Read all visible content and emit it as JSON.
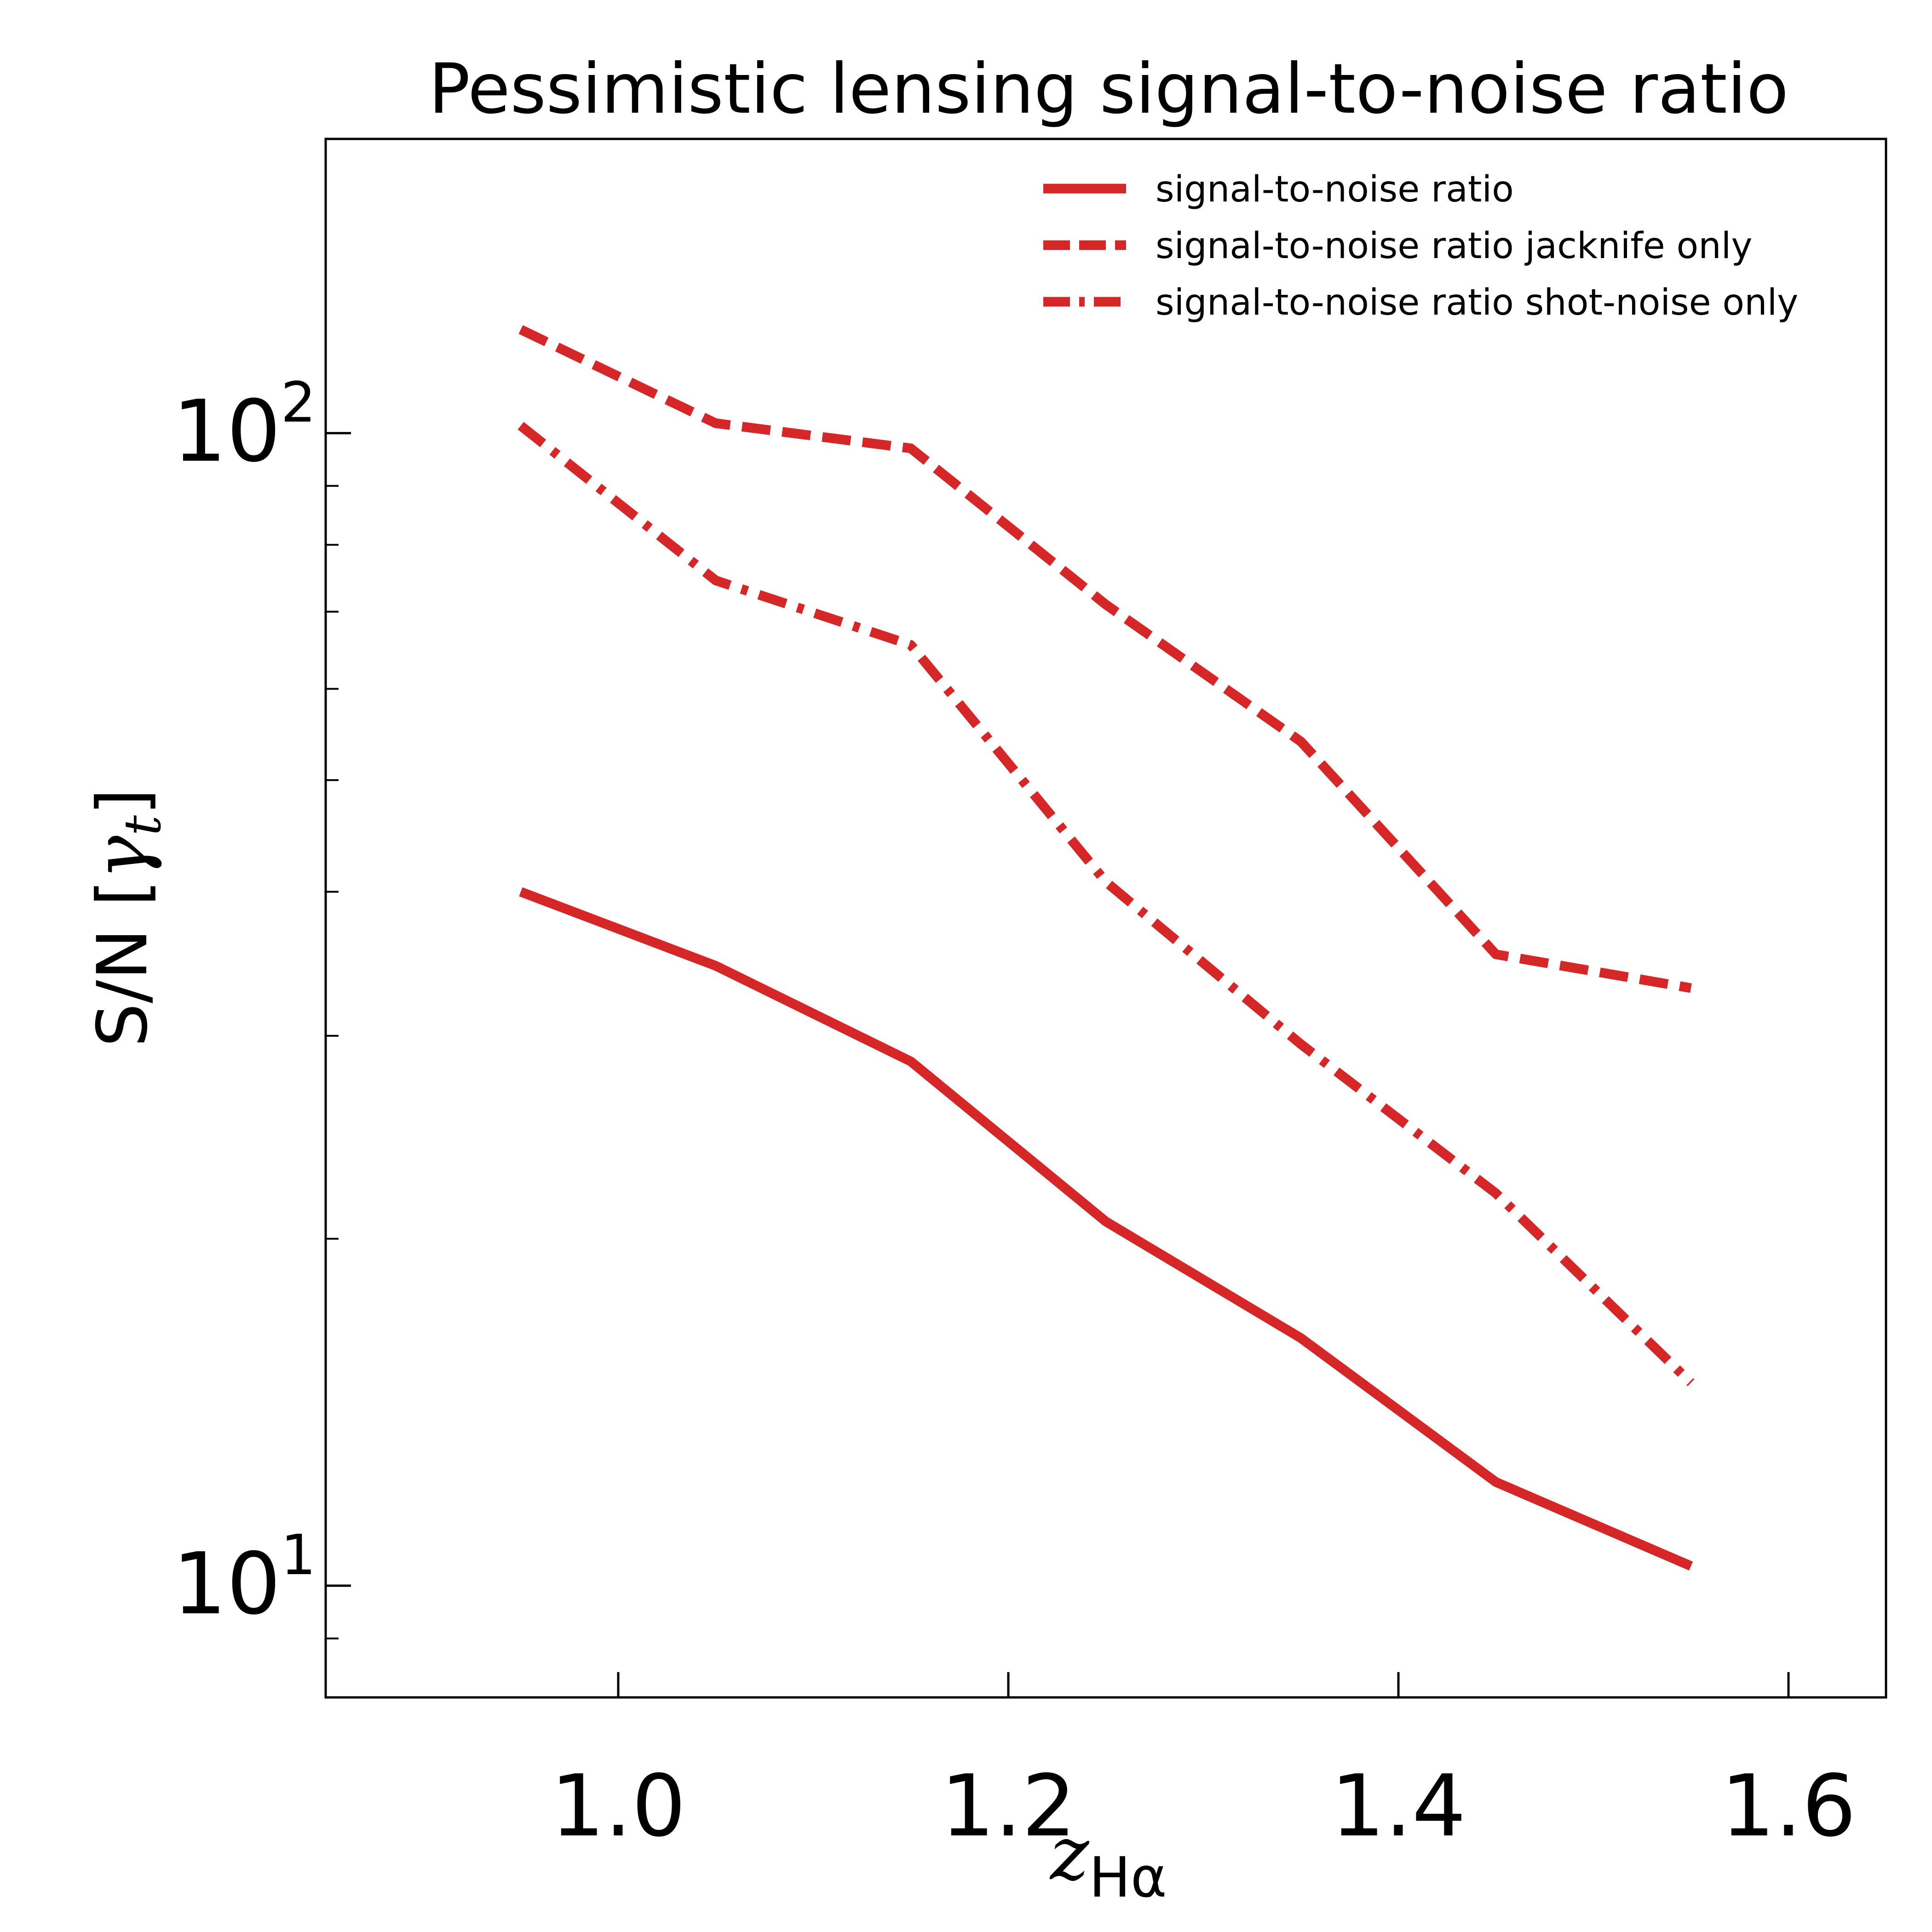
{
  "chart_data": {
    "type": "line",
    "title": "Pessimistic lensing signal-to-noise ratio",
    "xlabel": {
      "symbol": "z",
      "subscript": "Hα"
    },
    "ylabel": {
      "prefix": "S/N [",
      "symbol": "γ",
      "subscript": "t",
      "suffix": "]"
    },
    "xlim": [
      0.85,
      1.65
    ],
    "ylim": [
      8,
      180
    ],
    "yscale": "log",
    "xticks": [
      {
        "value": 1.0,
        "label": "1.0"
      },
      {
        "value": 1.2,
        "label": "1.2"
      },
      {
        "value": 1.4,
        "label": "1.4"
      },
      {
        "value": 1.6,
        "label": "1.6"
      }
    ],
    "yticks": [
      {
        "value": 10,
        "base": "10",
        "exp": "1"
      },
      {
        "value": 100,
        "base": "10",
        "exp": "2"
      }
    ],
    "yminor_ticks": [
      9,
      20,
      30,
      40,
      50,
      60,
      70,
      80,
      90
    ],
    "grid": false,
    "legend_position": "top-right",
    "color": "#d62728",
    "series": [
      {
        "name": "signal-to-noise ratio",
        "style": "solid",
        "x": [
          0.95,
          1.05,
          1.15,
          1.25,
          1.35,
          1.45,
          1.55
        ],
        "y": [
          40,
          34.5,
          28.5,
          20.7,
          16.4,
          12.3,
          10.4
        ]
      },
      {
        "name": "signal-to-noise ratio jacknife only",
        "style": "dashed",
        "x": [
          0.95,
          1.05,
          1.15,
          1.25,
          1.35,
          1.45,
          1.55
        ],
        "y": [
          123,
          102,
          97,
          71,
          54,
          35.3,
          33
        ]
      },
      {
        "name": "signal-to-noise ratio shot-noise only",
        "style": "dashdot",
        "x": [
          0.95,
          1.05,
          1.15,
          1.25,
          1.35,
          1.45,
          1.55
        ],
        "y": [
          101.5,
          74.5,
          65.5,
          40.8,
          29.5,
          21.9,
          15
        ]
      }
    ]
  }
}
